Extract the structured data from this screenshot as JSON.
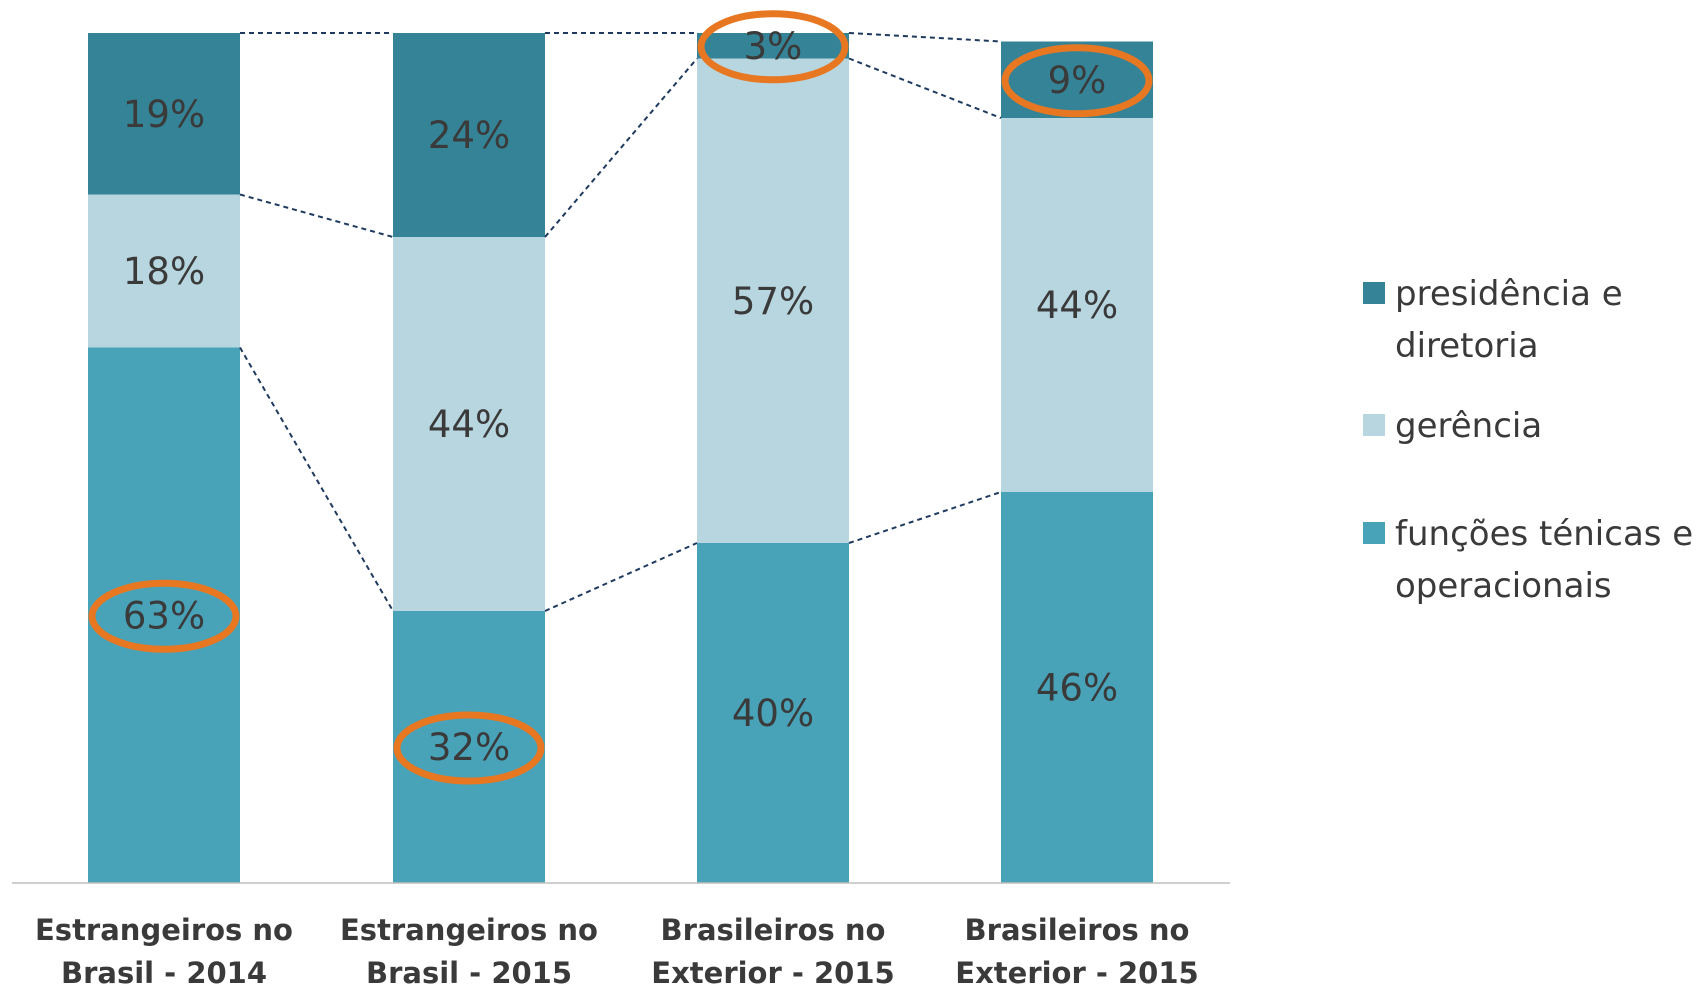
{
  "chart_data": {
    "type": "bar",
    "stacked": true,
    "percent": true,
    "categories": [
      [
        "Estrangeiros no",
        "Brasil - 2014"
      ],
      [
        "Estrangeiros no",
        "Brasil - 2015"
      ],
      [
        "Brasileiros no",
        "Exterior - 2015"
      ],
      [
        "Brasileiros no",
        "Exterior - 2015"
      ]
    ],
    "series": [
      {
        "name": "funções ténicas e operacionais",
        "values": [
          63,
          32,
          40,
          46
        ],
        "labels": [
          "63%",
          "32%",
          "40%",
          "46%"
        ],
        "color": "#48A2B8"
      },
      {
        "name": "gerência",
        "values": [
          18,
          44,
          57,
          44
        ],
        "labels": [
          "18%",
          "44%",
          "57%",
          "44%"
        ],
        "color": "#B7D6E0"
      },
      {
        "name": "presidência e diretoria",
        "values": [
          19,
          24,
          3,
          9
        ],
        "labels": [
          "19%",
          "24%",
          "3%",
          "9%"
        ],
        "color": "#358396"
      }
    ],
    "highlighted": [
      {
        "series": 0,
        "category": 0
      },
      {
        "series": 0,
        "category": 1
      },
      {
        "series": 2,
        "category": 2
      },
      {
        "series": 2,
        "category": 3
      }
    ],
    "highlight_color": "#E87722",
    "connector_color": "#1F3A5F",
    "legend": {
      "placement": "right",
      "items": [
        {
          "lines": [
            "presidência e",
            "diretoria"
          ],
          "color": "#358396"
        },
        {
          "lines": [
            "gerência"
          ],
          "color": "#B7D6E0"
        },
        {
          "lines": [
            "funções ténicas e",
            "operacionais"
          ],
          "color": "#48A2B8"
        }
      ]
    },
    "grid": false
  }
}
